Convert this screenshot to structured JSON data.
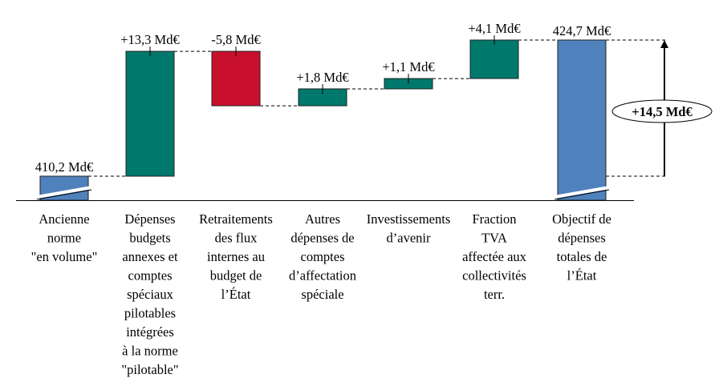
{
  "chart_data": {
    "type": "bar",
    "subtype": "waterfall",
    "title": "",
    "xlabel": "",
    "ylabel": "",
    "categories": [
      "Ancienne norme \"en volume\"",
      "Dépenses budgets annexes et comptes spéciaux pilotables intégrées à la norme \"pilotable\"",
      "Retraitements des flux internes au budget de l'État",
      "Autres dépenses de comptes d'affectation spéciale",
      "Investissements d'avenir",
      "Fraction TVA affectée aux collectivités terr.",
      "Objectif de dépenses totales de l'État"
    ],
    "category_lines": [
      [
        "Ancienne",
        "norme",
        "\"en volume\""
      ],
      [
        "Dépenses",
        "budgets",
        "annexes et",
        "comptes",
        "spéciaux",
        "pilotables",
        "intégrées",
        "à la norme",
        "\"pilotable\""
      ],
      [
        "Retraitements",
        "des flux",
        "internes au",
        "budget de",
        "l’État"
      ],
      [
        "Autres",
        "dépenses de",
        "comptes",
        "d’affectation",
        "spéciale"
      ],
      [
        "Investissements",
        "d’avenir"
      ],
      [
        "Fraction",
        "TVA",
        "affectée aux",
        "collectivités",
        "terr."
      ],
      [
        "Objectif de",
        "dépenses",
        "totales de",
        "l’État"
      ]
    ],
    "values": [
      410.2,
      13.3,
      -5.8,
      1.8,
      1.1,
      4.1,
      424.7
    ],
    "kinds": [
      "total",
      "delta",
      "delta",
      "delta",
      "delta",
      "delta",
      "total"
    ],
    "value_labels": [
      "410,2 Md€",
      "+13,3 Md€",
      "-5,8 Md€",
      "+1,8 Md€",
      "+1,1 Md€",
      "+4,1 Md€",
      "424,7 Md€"
    ],
    "total_change_label": "+14,5 Md€",
    "axis_break": true,
    "ylim_visible": [
      410.2,
      424.7
    ],
    "colors": {
      "total": "#4f81bd",
      "increase": "#00786c",
      "decrease": "#c8102e",
      "connector": "#000000"
    },
    "legend": "none",
    "grid": false
  }
}
